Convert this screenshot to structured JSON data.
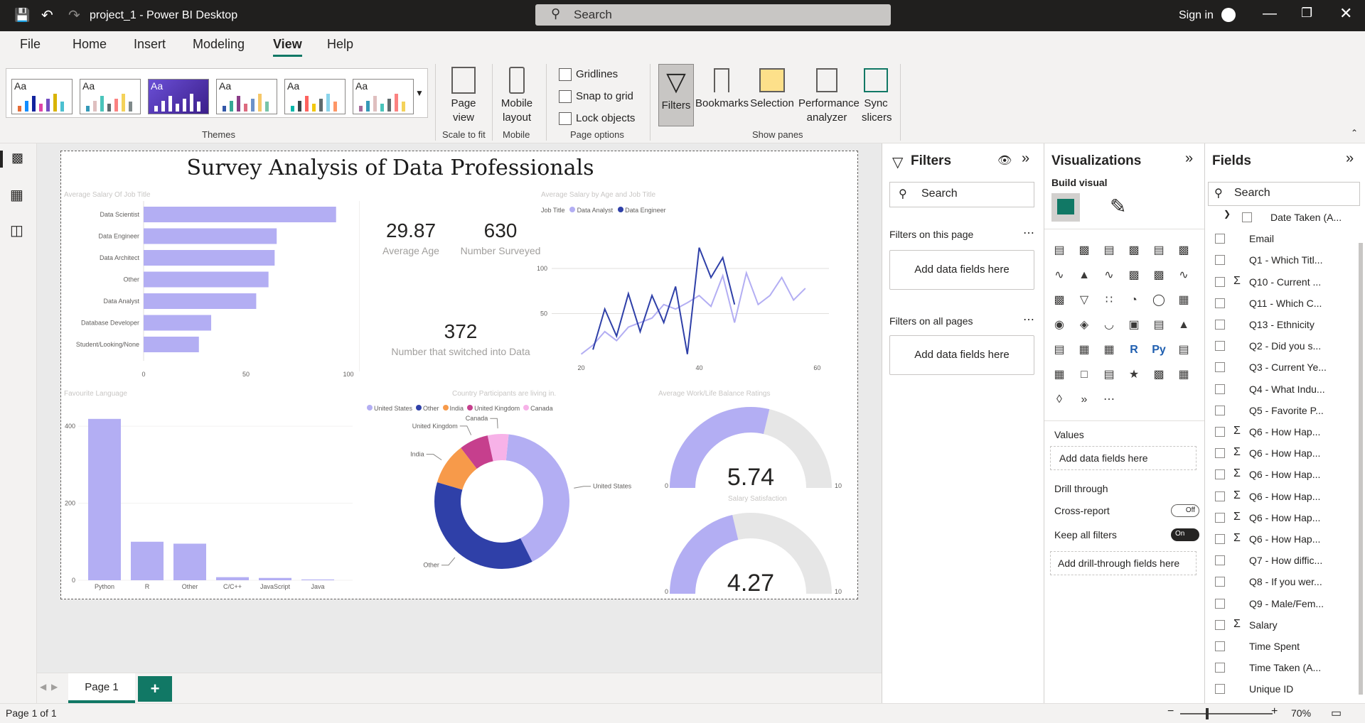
{
  "app": {
    "window_title": "project_1 - Power BI Desktop",
    "search_placeholder": "Search",
    "sign_in": "Sign in"
  },
  "menu": [
    "File",
    "Home",
    "Insert",
    "Modeling",
    "View",
    "Help"
  ],
  "ribbon": {
    "groups": {
      "themes": "Themes",
      "scale": "Scale to fit",
      "mobile": "Mobile",
      "page_options": "Page options",
      "show_panes": "Show panes"
    },
    "page_view": "Page view",
    "mobile_layout": "Mobile layout",
    "gridlines": "Gridlines",
    "snap": "Snap to grid",
    "lock": "Lock objects",
    "filters": "Filters",
    "bookmarks": "Bookmarks",
    "selection": "Selection",
    "performance": "Performance analyzer",
    "sync": "Sync slicers"
  },
  "report": {
    "title": "Survey Analysis of Data Professionals",
    "salary_by_title": {
      "title": "Average Salary Of Job Title"
    },
    "kpi_age": {
      "value": "29.87",
      "label": "Average Age"
    },
    "kpi_surveyed": {
      "value": "630",
      "label": "Number Surveyed"
    },
    "kpi_switched": {
      "value": "372",
      "label": "Number that switched into Data"
    },
    "salary_age": {
      "title": "Average Salary by Age and Job Title",
      "legend_title": "Job Title",
      "series": [
        "Data Analyst",
        "Data Engineer"
      ]
    },
    "language": {
      "title": "Favourite Language"
    },
    "country": {
      "title": "Country Participants are living in.",
      "legend": [
        "United States",
        "Other",
        "India",
        "United Kingdom",
        "Canada"
      ]
    },
    "worklife": {
      "title": "Average Work/Life Balance Ratings",
      "value": "5.74",
      "min": "0",
      "max": "10"
    },
    "salary_sat": {
      "title": "Salary Satisfaction",
      "value": "4.27",
      "min": "0",
      "max": "10"
    }
  },
  "chart_data": [
    {
      "type": "bar",
      "orientation": "horizontal",
      "title": "Average Salary Of Job Title",
      "categories": [
        "Data Scientist",
        "Data Engineer",
        "Data Architect",
        "Other",
        "Data Analyst",
        "Database Developer",
        "Student/Looking/None"
      ],
      "values": [
        94,
        65,
        64,
        61,
        55,
        33,
        27
      ],
      "xlim": [
        0,
        100
      ],
      "ticks": [
        "0",
        "50",
        "100"
      ]
    },
    {
      "type": "line",
      "title": "Average Salary by Age and Job Title",
      "x_ticks": [
        "20",
        "40",
        "60"
      ],
      "y_ticks": [
        "50",
        "100"
      ],
      "series": [
        {
          "name": "Data Analyst",
          "x": [
            20,
            22,
            24,
            26,
            28,
            30,
            32,
            34,
            36,
            38,
            40,
            42,
            44,
            46,
            48,
            50,
            52,
            54,
            56,
            58
          ],
          "y": [
            5,
            15,
            30,
            20,
            35,
            40,
            45,
            60,
            55,
            62,
            70,
            58,
            92,
            40,
            95,
            60,
            70,
            90,
            65,
            78
          ]
        },
        {
          "name": "Data Engineer",
          "x": [
            22,
            24,
            26,
            28,
            30,
            32,
            34,
            36,
            38,
            40,
            42,
            44,
            46
          ],
          "y": [
            10,
            55,
            25,
            72,
            30,
            70,
            40,
            80,
            5,
            123,
            90,
            112,
            60
          ]
        }
      ]
    },
    {
      "type": "bar",
      "title": "Favourite Language",
      "categories": [
        "Python",
        "R",
        "Other",
        "C/C++",
        "JavaScript",
        "Java"
      ],
      "values": [
        419,
        100,
        95,
        8,
        6,
        2
      ],
      "ylim": [
        0,
        450
      ],
      "ticks": [
        "0",
        "200",
        "400"
      ]
    },
    {
      "type": "pie",
      "title": "Country Participants are living in.",
      "categories": [
        "United States",
        "Other",
        "India",
        "United Kingdom",
        "Canada"
      ],
      "values": [
        41,
        37,
        10,
        7,
        5
      ]
    },
    {
      "type": "gauge",
      "title": "Average Work/Life Balance Ratings",
      "value": 5.74,
      "min": 0,
      "max": 10
    },
    {
      "type": "gauge",
      "title": "Salary Satisfaction",
      "value": 4.27,
      "min": 0,
      "max": 10
    }
  ],
  "colors": {
    "light": "#b3aef3",
    "dark": "#2f40a8",
    "orange": "#f79a4a",
    "magenta": "#c63f8d",
    "pink": "#f7b2e8",
    "accent": "#117865"
  },
  "filters_pane": {
    "title": "Filters",
    "search": "Search",
    "on_page": "Filters on this page",
    "all_pages": "Filters on all pages",
    "add": "Add data fields here"
  },
  "viz_pane": {
    "title": "Visualizations",
    "build": "Build visual",
    "values": "Values",
    "values_add": "Add data fields here",
    "drill": "Drill through",
    "cross": "Cross-report",
    "cross_state": "Off",
    "keep": "Keep all filters",
    "keep_state": "On",
    "drill_add": "Add drill-through fields here"
  },
  "fields_pane": {
    "title": "Fields",
    "search": "Search",
    "items": [
      {
        "label": "Date Taken (A...",
        "sigma": false
      },
      {
        "label": "Email",
        "sigma": false
      },
      {
        "label": "Q1 - Which Titl...",
        "sigma": false
      },
      {
        "label": "Q10 - Current ...",
        "sigma": true
      },
      {
        "label": "Q11 - Which C...",
        "sigma": false
      },
      {
        "label": "Q13 - Ethnicity",
        "sigma": false
      },
      {
        "label": "Q2 - Did you s...",
        "sigma": false
      },
      {
        "label": "Q3 - Current Ye...",
        "sigma": false
      },
      {
        "label": "Q4 - What Indu...",
        "sigma": false
      },
      {
        "label": "Q5 - Favorite P...",
        "sigma": false
      },
      {
        "label": "Q6 - How Hap...",
        "sigma": true
      },
      {
        "label": "Q6 - How Hap...",
        "sigma": true
      },
      {
        "label": "Q6 - How Hap...",
        "sigma": true
      },
      {
        "label": "Q6 - How Hap...",
        "sigma": true
      },
      {
        "label": "Q6 - How Hap...",
        "sigma": true
      },
      {
        "label": "Q6 - How Hap...",
        "sigma": true
      },
      {
        "label": "Q7 - How diffic...",
        "sigma": false
      },
      {
        "label": "Q8 - If you wer...",
        "sigma": false
      },
      {
        "label": "Q9 - Male/Fem...",
        "sigma": false
      },
      {
        "label": "Salary",
        "sigma": true
      },
      {
        "label": "Time Spent",
        "sigma": false
      },
      {
        "label": "Time Taken (A...",
        "sigma": false
      },
      {
        "label": "Unique ID",
        "sigma": false
      }
    ]
  },
  "page_tab": "Page 1",
  "status": {
    "page": "Page 1 of 1",
    "zoom": "70%"
  }
}
